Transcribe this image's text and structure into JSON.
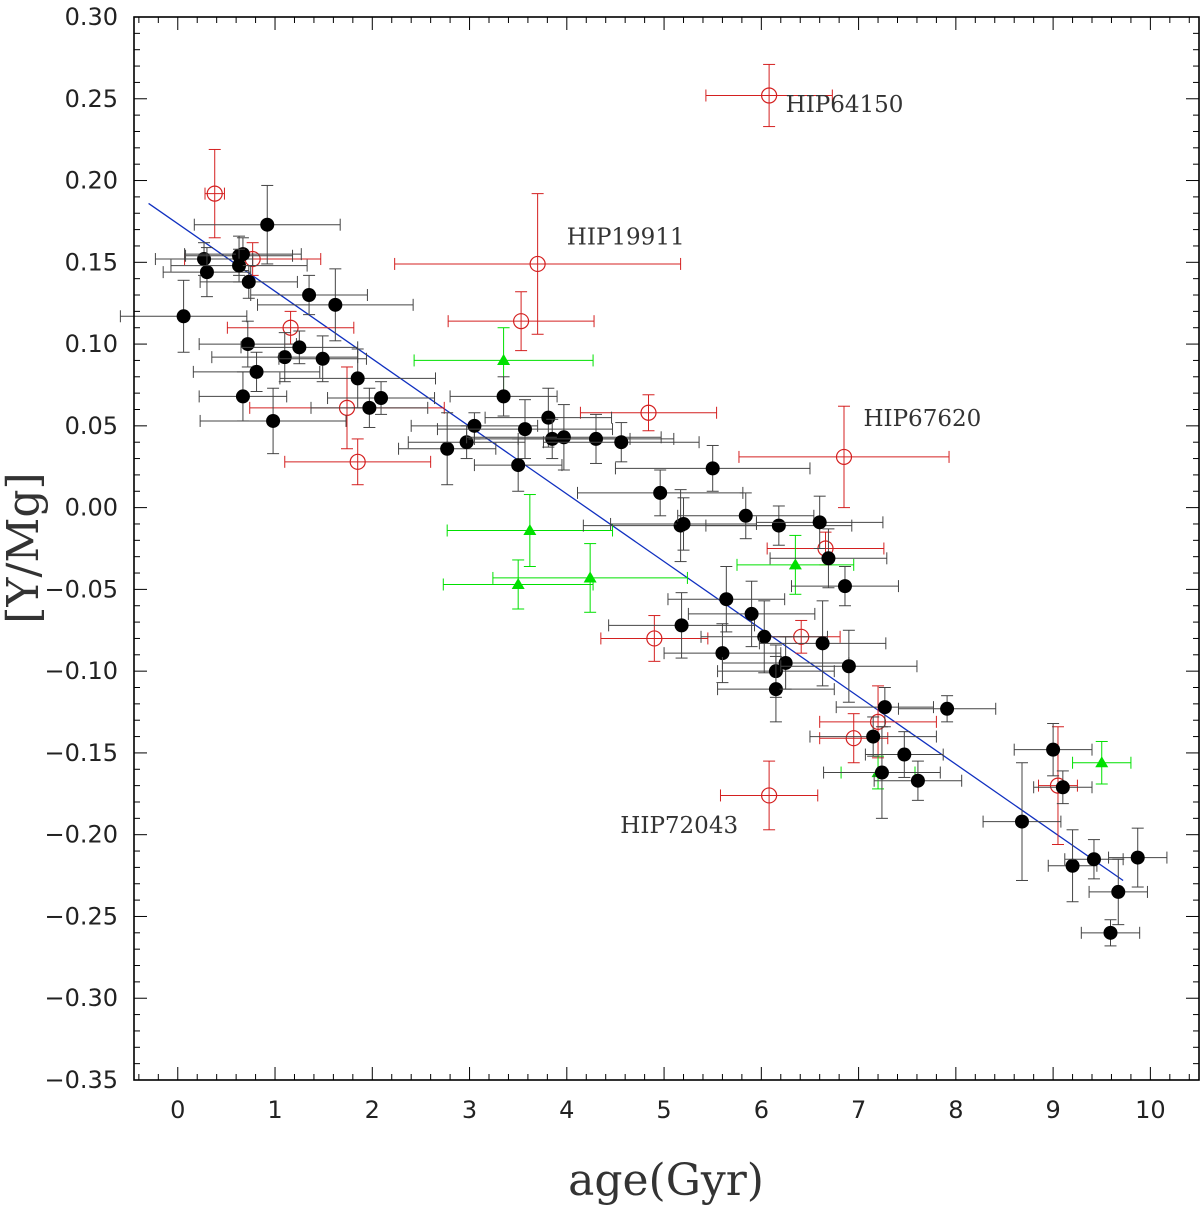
{
  "chart_data": {
    "type": "scatter",
    "xlabel": "age(Gyr)",
    "ylabel": "[Y/Mg]",
    "xlim": [
      -0.45,
      10.5
    ],
    "ylim": [
      -0.35,
      0.3
    ],
    "x_ticks": [
      0,
      1,
      2,
      3,
      4,
      5,
      6,
      7,
      8,
      9,
      10
    ],
    "y_ticks": [
      0.3,
      0.25,
      0.2,
      0.15,
      0.1,
      0.05,
      0.0,
      -0.05,
      -0.1,
      -0.15,
      -0.2,
      -0.25,
      -0.3,
      -0.35
    ],
    "x_tick_labels": [
      "0",
      "1",
      "2",
      "3",
      "4",
      "5",
      "6",
      "7",
      "8",
      "9",
      "10"
    ],
    "y_tick_labels": [
      "0.30",
      "0.25",
      "0.20",
      "0.15",
      "0.10",
      "0.05",
      "0.00",
      "−0.05",
      "−0.10",
      "−0.15",
      "−0.20",
      "−0.25",
      "−0.30",
      "−0.35"
    ],
    "x_minor_step": 0.2,
    "y_minor_step": 0.01,
    "grid": false,
    "colors": {
      "black": "#000000",
      "red": "#d42020",
      "green": "#00e000",
      "fit": "#1030c0",
      "errbar_black": "#444444"
    },
    "fit_line": {
      "x": [
        -0.3,
        9.72
      ],
      "y": [
        0.186,
        -0.228
      ]
    },
    "annotations": [
      {
        "text": "HIP64150",
        "x": 6.25,
        "y": 0.242
      },
      {
        "text": "HIP19911",
        "x": 4.0,
        "y": 0.161
      },
      {
        "text": "HIP67620",
        "x": 7.05,
        "y": 0.05
      },
      {
        "text": "HIP72043",
        "x": 4.55,
        "y": -0.199
      }
    ],
    "series": [
      {
        "marker": "filled-circle",
        "color": "black",
        "points": [
          {
            "x": 0.06,
            "y": 0.117,
            "xe": 0.65,
            "ye": 0.022
          },
          {
            "x": 0.27,
            "y": 0.152,
            "xe": 0.5,
            "ye": 0.01
          },
          {
            "x": 0.3,
            "y": 0.144,
            "xe": 0.45,
            "ye": 0.015
          },
          {
            "x": 0.63,
            "y": 0.154,
            "xe": 0.55,
            "ye": 0.012
          },
          {
            "x": 0.67,
            "y": 0.155,
            "xe": 0.6,
            "ye": 0.01
          },
          {
            "x": 0.63,
            "y": 0.148,
            "xe": 0.7,
            "ye": 0.01
          },
          {
            "x": 0.73,
            "y": 0.138,
            "xe": 0.5,
            "ye": 0.01
          },
          {
            "x": 0.92,
            "y": 0.173,
            "xe": 0.75,
            "ye": 0.024
          },
          {
            "x": 0.72,
            "y": 0.1,
            "xe": 0.5,
            "ye": 0.014
          },
          {
            "x": 0.81,
            "y": 0.083,
            "xe": 0.65,
            "ye": 0.012
          },
          {
            "x": 0.67,
            "y": 0.068,
            "xe": 0.45,
            "ye": 0.015
          },
          {
            "x": 0.98,
            "y": 0.053,
            "xe": 0.75,
            "ye": 0.02
          },
          {
            "x": 1.1,
            "y": 0.092,
            "xe": 0.75,
            "ye": 0.015
          },
          {
            "x": 1.25,
            "y": 0.098,
            "xe": 0.6,
            "ye": 0.01
          },
          {
            "x": 1.35,
            "y": 0.13,
            "xe": 0.6,
            "ye": 0.012
          },
          {
            "x": 1.49,
            "y": 0.091,
            "xe": 0.45,
            "ye": 0.014
          },
          {
            "x": 1.62,
            "y": 0.124,
            "xe": 0.8,
            "ye": 0.022
          },
          {
            "x": 1.85,
            "y": 0.079,
            "xe": 0.8,
            "ye": 0.018
          },
          {
            "x": 1.97,
            "y": 0.061,
            "xe": 0.6,
            "ye": 0.012
          },
          {
            "x": 2.09,
            "y": 0.067,
            "xe": 0.55,
            "ye": 0.01
          },
          {
            "x": 2.77,
            "y": 0.036,
            "xe": 0.5,
            "ye": 0.022
          },
          {
            "x": 2.97,
            "y": 0.04,
            "xe": 0.6,
            "ye": 0.01
          },
          {
            "x": 3.05,
            "y": 0.05,
            "xe": 0.65,
            "ye": 0.008
          },
          {
            "x": 3.35,
            "y": 0.068,
            "xe": 0.55,
            "ye": 0.012
          },
          {
            "x": 3.5,
            "y": 0.026,
            "xe": 0.45,
            "ye": 0.016
          },
          {
            "x": 3.57,
            "y": 0.048,
            "xe": 0.9,
            "ye": 0.018
          },
          {
            "x": 3.81,
            "y": 0.055,
            "xe": 0.65,
            "ye": 0.018
          },
          {
            "x": 3.85,
            "y": 0.042,
            "xe": 0.8,
            "ye": 0.012
          },
          {
            "x": 3.97,
            "y": 0.043,
            "xe": 1.0,
            "ye": 0.02
          },
          {
            "x": 4.3,
            "y": 0.042,
            "xe": 0.8,
            "ye": 0.015
          },
          {
            "x": 4.56,
            "y": 0.04,
            "xe": 0.8,
            "ye": 0.012
          },
          {
            "x": 4.96,
            "y": 0.009,
            "xe": 0.85,
            "ye": 0.014
          },
          {
            "x": 5.17,
            "y": -0.011,
            "xe": 1.0,
            "ye": 0.022
          },
          {
            "x": 5.2,
            "y": -0.01,
            "xe": 0.75,
            "ye": 0.016
          },
          {
            "x": 5.18,
            "y": -0.072,
            "xe": 0.75,
            "ye": 0.02
          },
          {
            "x": 5.5,
            "y": 0.024,
            "xe": 1.0,
            "ye": 0.014
          },
          {
            "x": 5.6,
            "y": -0.089,
            "xe": 0.6,
            "ye": 0.018
          },
          {
            "x": 5.64,
            "y": -0.056,
            "xe": 0.6,
            "ye": 0.02
          },
          {
            "x": 5.84,
            "y": -0.005,
            "xe": 0.7,
            "ye": 0.014
          },
          {
            "x": 5.9,
            "y": -0.065,
            "xe": 0.65,
            "ye": 0.02
          },
          {
            "x": 6.03,
            "y": -0.079,
            "xe": 0.65,
            "ye": 0.022
          },
          {
            "x": 6.15,
            "y": -0.1,
            "xe": 0.6,
            "ye": 0.016
          },
          {
            "x": 6.15,
            "y": -0.111,
            "xe": 0.6,
            "ye": 0.02
          },
          {
            "x": 6.18,
            "y": -0.011,
            "xe": 0.75,
            "ye": 0.012
          },
          {
            "x": 6.25,
            "y": -0.095,
            "xe": 0.65,
            "ye": 0.016
          },
          {
            "x": 6.6,
            "y": -0.009,
            "xe": 0.65,
            "ye": 0.016
          },
          {
            "x": 6.63,
            "y": -0.083,
            "xe": 0.65,
            "ye": 0.026
          },
          {
            "x": 6.69,
            "y": -0.031,
            "xe": 0.6,
            "ye": 0.018
          },
          {
            "x": 6.86,
            "y": -0.048,
            "xe": 0.55,
            "ye": 0.012
          },
          {
            "x": 6.9,
            "y": -0.097,
            "xe": 0.7,
            "ye": 0.022
          },
          {
            "x": 7.15,
            "y": -0.14,
            "xe": 0.65,
            "ye": 0.012
          },
          {
            "x": 7.24,
            "y": -0.162,
            "xe": 0.6,
            "ye": 0.028
          },
          {
            "x": 7.27,
            "y": -0.122,
            "xe": 0.5,
            "ye": 0.012
          },
          {
            "x": 7.47,
            "y": -0.151,
            "xe": 0.4,
            "ye": 0.014
          },
          {
            "x": 7.61,
            "y": -0.167,
            "xe": 0.45,
            "ye": 0.012
          },
          {
            "x": 7.91,
            "y": -0.123,
            "xe": 0.5,
            "ye": 0.008
          },
          {
            "x": 8.68,
            "y": -0.192,
            "xe": 0.4,
            "ye": 0.036
          },
          {
            "x": 9.0,
            "y": -0.148,
            "xe": 0.4,
            "ye": 0.016
          },
          {
            "x": 9.1,
            "y": -0.171,
            "xe": 0.3,
            "ye": 0.01
          },
          {
            "x": 9.2,
            "y": -0.219,
            "xe": 0.25,
            "ye": 0.022
          },
          {
            "x": 9.42,
            "y": -0.215,
            "xe": 0.3,
            "ye": 0.012
          },
          {
            "x": 9.59,
            "y": -0.26,
            "xe": 0.3,
            "ye": 0.008
          },
          {
            "x": 9.67,
            "y": -0.235,
            "xe": 0.3,
            "ye": 0.02
          },
          {
            "x": 9.87,
            "y": -0.214,
            "xe": 0.3,
            "ye": 0.018
          }
        ]
      },
      {
        "marker": "open-circle",
        "color": "red",
        "points": [
          {
            "x": 0.38,
            "y": 0.192,
            "xe": 0.1,
            "ye": 0.027
          },
          {
            "x": 0.77,
            "y": 0.152,
            "xe": 0.7,
            "ye": 0.01
          },
          {
            "x": 1.16,
            "y": 0.11,
            "xe": 0.65,
            "ye": 0.01
          },
          {
            "x": 1.74,
            "y": 0.061,
            "xe": 1.0,
            "ye": 0.025
          },
          {
            "x": 1.85,
            "y": 0.028,
            "xe": 0.75,
            "ye": 0.014
          },
          {
            "x": 3.53,
            "y": 0.114,
            "xe": 0.75,
            "ye": 0.018
          },
          {
            "x": 3.7,
            "y": 0.149,
            "xe": 1.47,
            "ye": 0.043
          },
          {
            "x": 4.84,
            "y": 0.058,
            "xe": 0.7,
            "ye": 0.011
          },
          {
            "x": 4.9,
            "y": -0.08,
            "xe": 0.55,
            "ye": 0.014
          },
          {
            "x": 6.08,
            "y": 0.252,
            "xe": 0.65,
            "ye": 0.019
          },
          {
            "x": 6.08,
            "y": -0.176,
            "xe": 0.5,
            "ye": 0.021
          },
          {
            "x": 6.41,
            "y": -0.079,
            "xe": 0.4,
            "ye": 0.01
          },
          {
            "x": 6.66,
            "y": -0.025,
            "xe": 0.6,
            "ye": 0.01
          },
          {
            "x": 6.85,
            "y": 0.031,
            "xe": 1.08,
            "ye": 0.031
          },
          {
            "x": 6.95,
            "y": -0.141,
            "xe": 0.35,
            "ye": 0.015
          },
          {
            "x": 7.2,
            "y": -0.131,
            "xe": 0.6,
            "ye": 0.022
          },
          {
            "x": 9.05,
            "y": -0.17,
            "xe": 0.2,
            "ye": 0.036
          }
        ]
      },
      {
        "marker": "filled-triangle",
        "color": "green",
        "points": [
          {
            "x": 3.35,
            "y": 0.09,
            "xe": 0.92,
            "ye": 0.02
          },
          {
            "x": 3.62,
            "y": -0.014,
            "xe": 0.85,
            "ye": 0.022
          },
          {
            "x": 3.5,
            "y": -0.047,
            "xe": 0.77,
            "ye": 0.015
          },
          {
            "x": 4.24,
            "y": -0.043,
            "xe": 1.0,
            "ye": 0.021
          },
          {
            "x": 6.35,
            "y": -0.035,
            "xe": 0.6,
            "ye": 0.018
          },
          {
            "x": 7.2,
            "y": -0.162,
            "xe": 0.38,
            "ye": 0.01
          },
          {
            "x": 9.5,
            "y": -0.156,
            "xe": 0.3,
            "ye": 0.013
          }
        ]
      }
    ]
  }
}
